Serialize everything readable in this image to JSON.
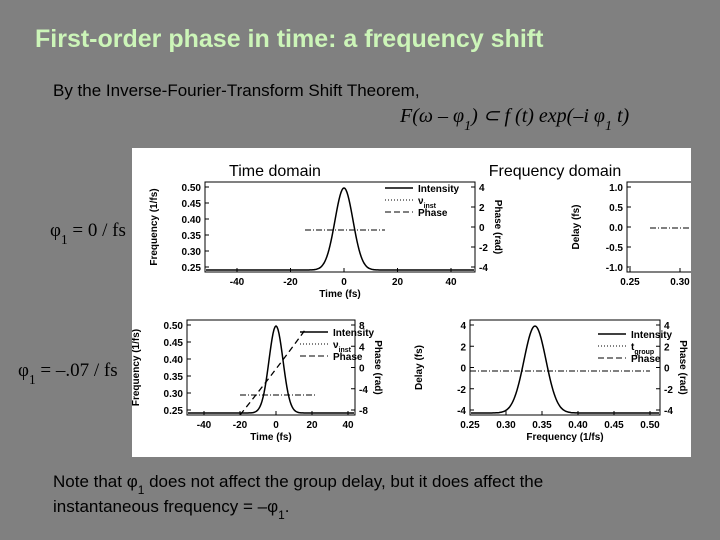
{
  "title": "First-order phase in time: a frequency shift",
  "intro": "By the Inverse-Fourier-Transform Shift Theorem,",
  "equation": [
    {
      "text": "F"
    },
    {
      "text": "(ω – φ"
    },
    {
      "text": "1",
      "sub": true
    },
    {
      "text": ")  ⊂  f (t) exp(–i φ"
    },
    {
      "text": "1",
      "sub": true
    },
    {
      "text": " t)"
    }
  ],
  "figure": {
    "headers": [
      "Time domain",
      "Frequency domain"
    ],
    "row_labels": [
      [
        {
          "text": "φ"
        },
        {
          "text": "1",
          "sub": true
        },
        {
          "text": " = 0 / fs"
        }
      ],
      [
        {
          "text": "φ"
        },
        {
          "text": "1",
          "sub": true
        },
        {
          "text": " = –.07 / fs"
        }
      ]
    ],
    "panels": [
      {
        "xticks": [
          "-40",
          "-20",
          "0",
          "20",
          "40"
        ],
        "yticks": [
          "0.50",
          "0.45",
          "0.40",
          "0.35",
          "0.30",
          "0.25"
        ],
        "y2ticks": [
          "4",
          "2",
          "0",
          "-2",
          "-4"
        ],
        "xlabel": "Time (fs)",
        "ylabel": "Frequency (1/fs)",
        "y2label": "Phase (rad)",
        "legend": [
          {
            "text": "Intensity"
          },
          {
            "text": "ν",
            "sub": "inst"
          },
          {
            "text": "Phase"
          }
        ]
      },
      {
        "xticks": [
          "0.25",
          "0.30"
        ],
        "yticks": [
          "1.0",
          "0.5",
          "0.0",
          "-0.5",
          "-1.0"
        ],
        "ylabel": "Delay (fs)"
      },
      {
        "xticks": [
          "-40",
          "-20",
          "0",
          "20",
          "40"
        ],
        "yticks": [
          "0.50",
          "0.45",
          "0.40",
          "0.35",
          "0.30",
          "0.25"
        ],
        "y2ticks": [
          "8",
          "4",
          "0",
          "-4",
          "-8"
        ],
        "xlabel": "Time (fs)",
        "ylabel": "Frequency (1/fs)",
        "y2label": "Phase (rad)",
        "legend": [
          {
            "text": "Intensity"
          },
          {
            "text": "ν",
            "sub": "inst"
          },
          {
            "text": "Phase"
          }
        ]
      },
      {
        "xticks": [
          "0.25",
          "0.30",
          "0.35",
          "0.40",
          "0.45",
          "0.50"
        ],
        "yticks": [
          "4",
          "2",
          "0",
          "-2",
          "-4"
        ],
        "y2ticks": [
          "4",
          "2",
          "0",
          "-2",
          "-4"
        ],
        "xlabel": "Frequency (1/fs)",
        "ylabel": "Delay (fs)",
        "y2label": "Phase (rad)",
        "legend": [
          {
            "text": "Intensity"
          },
          {
            "text": "t",
            "sub": "group"
          },
          {
            "text": "Phase"
          }
        ]
      }
    ]
  },
  "note": [
    [
      {
        "text": "Note that "
      },
      {
        "text": "φ"
      },
      {
        "text": "1",
        "sub": true
      },
      {
        "text": " does not affect the group delay, but it does affect the"
      }
    ],
    [
      {
        "text": "instantaneous frequency = –"
      },
      {
        "text": "φ"
      },
      {
        "text": "1",
        "sub": true
      },
      {
        "text": "."
      }
    ]
  ]
}
